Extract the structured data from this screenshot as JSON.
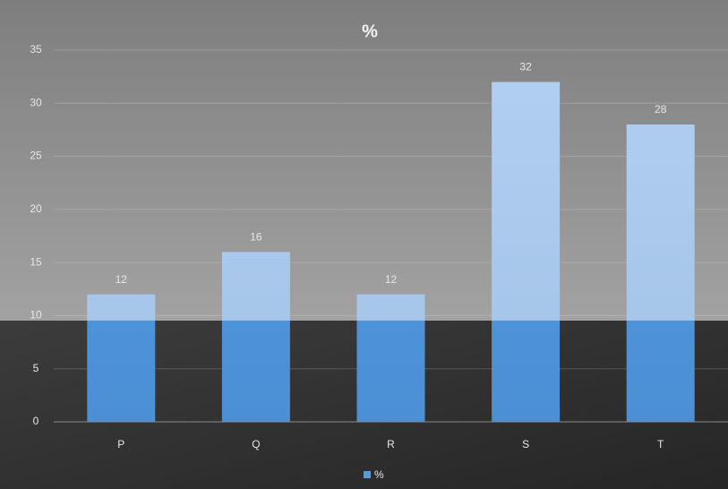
{
  "chart_data": {
    "type": "bar",
    "title": "%",
    "categories": [
      "P",
      "Q",
      "R",
      "S",
      "T"
    ],
    "series": [
      {
        "name": "%",
        "color": "#5b9bd5",
        "values": [
          12,
          16,
          12,
          32,
          28
        ]
      }
    ],
    "ylim": [
      0,
      35
    ],
    "yticks": [
      0,
      5,
      10,
      15,
      20,
      25,
      30,
      35
    ],
    "grid": true,
    "legend": "bottom"
  }
}
